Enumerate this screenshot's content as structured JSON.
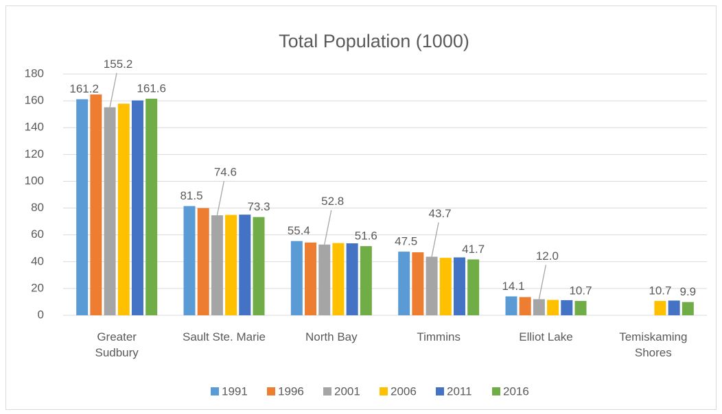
{
  "chart_data": {
    "type": "bar",
    "title": "Total Population (1000)",
    "categories": [
      "Greater\nSudbury",
      "Sault Ste. Marie",
      "North Bay",
      "Timmins",
      "Elliot Lake",
      "Temiskaming\nShores"
    ],
    "series": [
      {
        "name": "1991",
        "color": "#5b9bd5",
        "values": [
          161.2,
          81.5,
          55.4,
          47.5,
          14.1,
          null
        ],
        "value_labels": [
          "161.2",
          "81.5",
          "55.4",
          "47.5",
          "14.1",
          null
        ]
      },
      {
        "name": "1996",
        "color": "#ed7d31",
        "values": [
          164.8,
          80.0,
          54.3,
          47.0,
          13.6,
          null
        ]
      },
      {
        "name": "2001",
        "color": "#a5a5a5",
        "values": [
          155.2,
          74.6,
          52.8,
          43.7,
          12.0,
          null
        ],
        "value_labels": [
          "155.2",
          "74.6",
          "52.8",
          "43.7",
          "12.0",
          null
        ]
      },
      {
        "name": "2006",
        "color": "#ffc000",
        "values": [
          157.9,
          74.9,
          53.9,
          42.9,
          11.5,
          10.7
        ],
        "value_labels": [
          null,
          null,
          null,
          null,
          null,
          "10.7"
        ]
      },
      {
        "name": "2011",
        "color": "#4472c4",
        "values": [
          160.3,
          75.1,
          53.7,
          43.2,
          11.3,
          11.0
        ]
      },
      {
        "name": "2016",
        "color": "#70ad47",
        "values": [
          161.6,
          73.3,
          51.6,
          41.7,
          10.7,
          9.9
        ],
        "value_labels": [
          "161.6",
          "73.3",
          "51.6",
          "41.7",
          "10.7",
          "9.9"
        ]
      }
    ],
    "ylim": [
      0,
      180
    ],
    "yticks": [
      0,
      20,
      40,
      60,
      80,
      100,
      120,
      140,
      160,
      180
    ],
    "grid": true,
    "legend": "bottom"
  }
}
